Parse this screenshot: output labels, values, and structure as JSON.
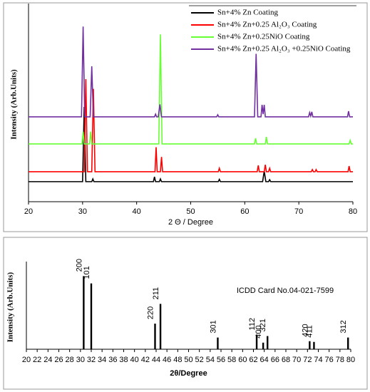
{
  "chart_data": [
    {
      "type": "line",
      "xlabel": "2 Θ / Degree",
      "ylabel": "Intensity (Arb.Units)",
      "xlim": [
        20,
        80
      ],
      "xticks": [
        20,
        30,
        40,
        50,
        60,
        70,
        80
      ],
      "ylim": [
        0,
        100
      ],
      "series": [
        {
          "name": "Sn+4% Zn Coating",
          "color": "#000000",
          "x": [
            20,
            30.0,
            30.3,
            30.6,
            31.7,
            31.9,
            32.1,
            43.1,
            43.3,
            43.5,
            44.2,
            44.4,
            44.6,
            55.1,
            55.3,
            55.5,
            63.3,
            63.6,
            63.9,
            64.4,
            64.6,
            64.8,
            80
          ],
          "values": [
            10.3,
            10.3,
            48.7,
            10.3,
            10.3,
            11.7,
            10.3,
            10.3,
            12.8,
            10.3,
            10.3,
            11.7,
            10.3,
            10.3,
            11.5,
            10.3,
            10.3,
            15.7,
            10.3,
            10.3,
            11.3,
            10.3,
            10.3
          ]
        },
        {
          "name": "Sn+4% Zn+0.25 Al₂O₃ Coating",
          "color": "#ff0000",
          "x": [
            20,
            30.3,
            30.6,
            30.9,
            31.7,
            32.0,
            32.3,
            43.4,
            43.6,
            43.8,
            44.4,
            44.6,
            44.8,
            55.1,
            55.3,
            55.5,
            62.3,
            62.5,
            62.7,
            63.6,
            63.8,
            64.0,
            64.4,
            64.6,
            64.8,
            72.3,
            72.5,
            72.7,
            73.0,
            73.2,
            73.4,
            79.1,
            79.3,
            79.5,
            80
          ],
          "values": [
            15.4,
            15.4,
            63,
            15.4,
            15.4,
            58,
            15.4,
            15.4,
            28,
            15.4,
            15.4,
            23,
            15.4,
            15.4,
            17.2,
            15.4,
            15.4,
            18.7,
            15.4,
            15.4,
            19,
            15.4,
            15.4,
            17.2,
            15.4,
            15.4,
            16.5,
            15.4,
            15.4,
            16.5,
            15.4,
            15.4,
            18.3,
            15.4,
            15.4
          ]
        },
        {
          "name": "Sn+4% Zn+0.25NiO Coating",
          "color": "#66ff33",
          "x": [
            20,
            29.9,
            30.1,
            30.3,
            31.3,
            31.5,
            31.7,
            44.1,
            44.4,
            44.7,
            61.8,
            62.0,
            62.2,
            63.8,
            64.0,
            64.2,
            79.3,
            79.5,
            79.7,
            80
          ],
          "values": [
            29.7,
            29.7,
            36,
            29.7,
            29.7,
            36,
            29.7,
            29.7,
            86,
            29.7,
            29.7,
            32.6,
            29.7,
            29.7,
            33.3,
            29.7,
            29.7,
            31.5,
            29.7,
            29.7
          ]
        },
        {
          "name": "Sn+4% Zn+0.25 Al₂O₃ +0.25NiO Coating",
          "color": "#7030a0",
          "x": [
            20,
            29.8,
            30.1,
            30.4,
            31.4,
            31.7,
            32.0,
            43.3,
            43.5,
            43.7,
            44.0,
            44.3,
            44.6,
            54.8,
            55.0,
            55.2,
            61.8,
            62.1,
            62.4,
            63.0,
            63.2,
            63.4,
            63.6,
            63.8,
            71.8,
            72.0,
            72.2,
            72.4,
            72.6,
            79.0,
            79.2,
            79.4,
            80
          ],
          "values": [
            43.6,
            43.6,
            90,
            43.6,
            43.6,
            69.6,
            43.6,
            43.6,
            45,
            43.6,
            43.6,
            50,
            43.6,
            43.6,
            44.7,
            43.6,
            43.6,
            76,
            43.6,
            43.6,
            49.8,
            45,
            49.8,
            43.6,
            43.6,
            45.8,
            44,
            46.2,
            43.6,
            43.6,
            46.5,
            43.6,
            43.6
          ]
        }
      ]
    },
    {
      "type": "bar",
      "xlabel": "2θ/Degree",
      "ylabel": "Intensity (Arb.Units)",
      "annotation": "ICDD Card No.04-021-7599",
      "color": "#000000",
      "xlim": [
        20,
        80
      ],
      "xticks": [
        20,
        22,
        24,
        26,
        28,
        30,
        32,
        34,
        36,
        38,
        40,
        42,
        44,
        46,
        48,
        50,
        52,
        54,
        56,
        58,
        60,
        62,
        64,
        66,
        68,
        70,
        72,
        74,
        76,
        78,
        80
      ],
      "ylim": [
        0,
        115
      ],
      "x": [
        30.6,
        32.0,
        43.8,
        44.8,
        55.4,
        62.6,
        63.8,
        64.6,
        72.4,
        73.2,
        79.5
      ],
      "values": [
        100,
        90,
        35,
        62,
        16,
        20,
        9,
        18,
        11,
        10,
        16
      ],
      "labels": [
        "200",
        "101",
        "220",
        "211",
        "301",
        "112",
        "400",
        "321",
        "420",
        "411",
        "312"
      ]
    }
  ]
}
